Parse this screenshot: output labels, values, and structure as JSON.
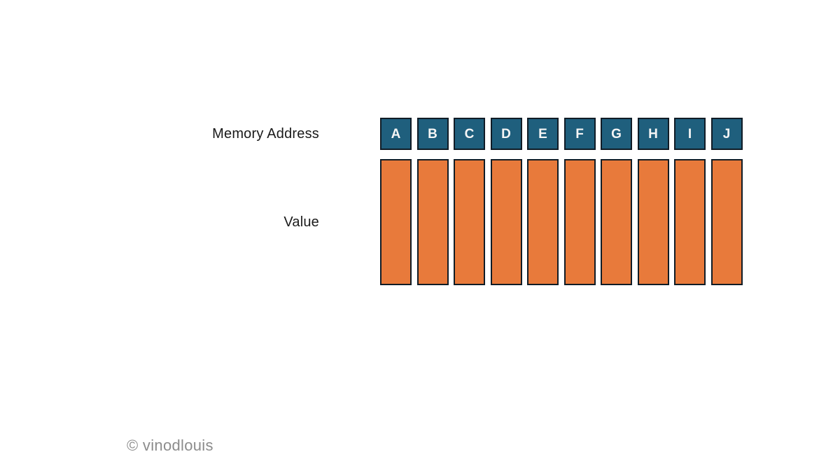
{
  "diagram": {
    "row_labels": {
      "address": "Memory Address",
      "value": "Value"
    },
    "addresses": [
      "A",
      "B",
      "C",
      "D",
      "E",
      "F",
      "G",
      "H",
      "I",
      "J"
    ],
    "value_cells": [
      "",
      "",
      "",
      "",
      "",
      "",
      "",
      "",
      "",
      ""
    ],
    "colors": {
      "address_box_fill": "#1F5F7D",
      "value_box_fill": "#E87A3B",
      "box_border": "#101C26",
      "address_letter": "#F5F5F5",
      "label_text": "#1A1A1A",
      "watermark_text": "#8C8C8C"
    }
  },
  "footer": {
    "watermark": "© vinodlouis"
  }
}
